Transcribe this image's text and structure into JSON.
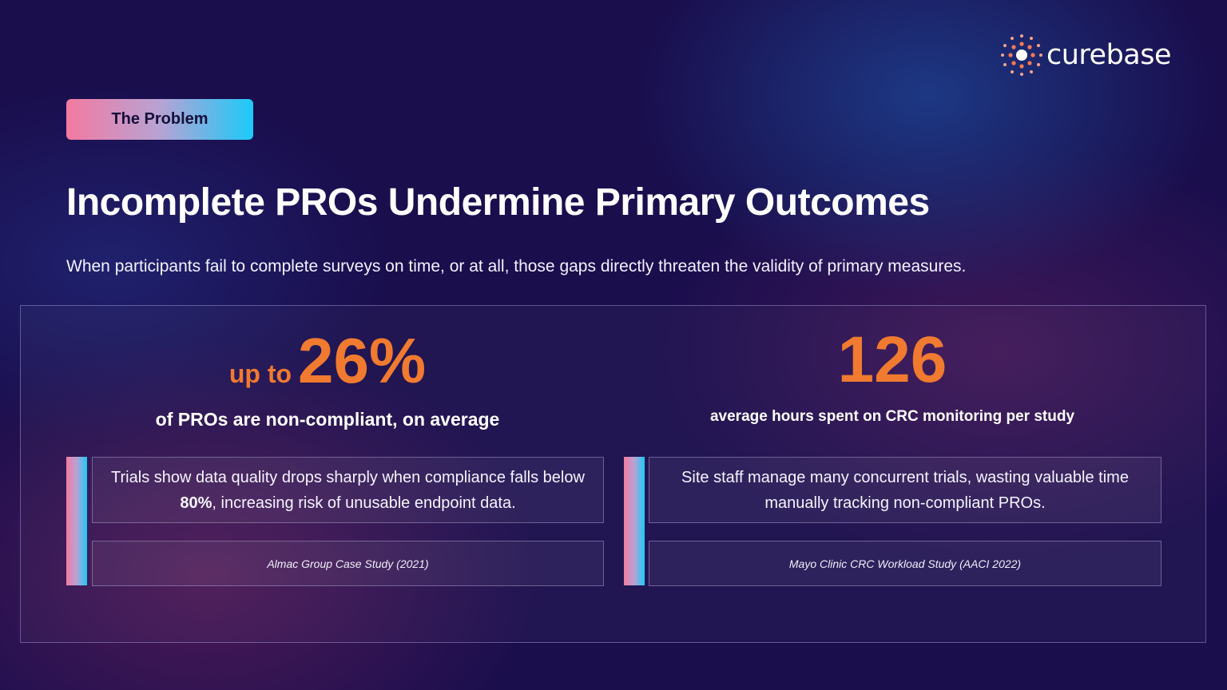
{
  "brand": {
    "name": "curebase",
    "accent_orange": "#f07a30",
    "gradient": [
      "#f47aa0",
      "#1ccaf8"
    ],
    "logo_icon": "sunburst-dot-logo-icon"
  },
  "badge": {
    "label": "The Problem"
  },
  "header": {
    "title": "Incomplete PROs Undermine Primary Outcomes",
    "subtitle": "When participants fail to complete surveys on time, or at all,  those gaps directly threaten the validity of primary measures."
  },
  "stats": [
    {
      "prefix": "up to",
      "value": "26%",
      "caption": "of PROs are non-compliant, on average",
      "body_before": "Trials show data quality drops sharply when compliance falls below ",
      "body_bold": "80%",
      "body_after": ", increasing risk of unusable endpoint data.",
      "source": "Almac Group Case Study (2021)"
    },
    {
      "value": "126",
      "caption": "average hours spent on CRC monitoring per study",
      "body": "Site staff manage many concurrent trials, wasting valuable time manually tracking non-compliant PROs.",
      "source": "Mayo Clinic CRC Workload Study (AACI 2022)"
    }
  ]
}
